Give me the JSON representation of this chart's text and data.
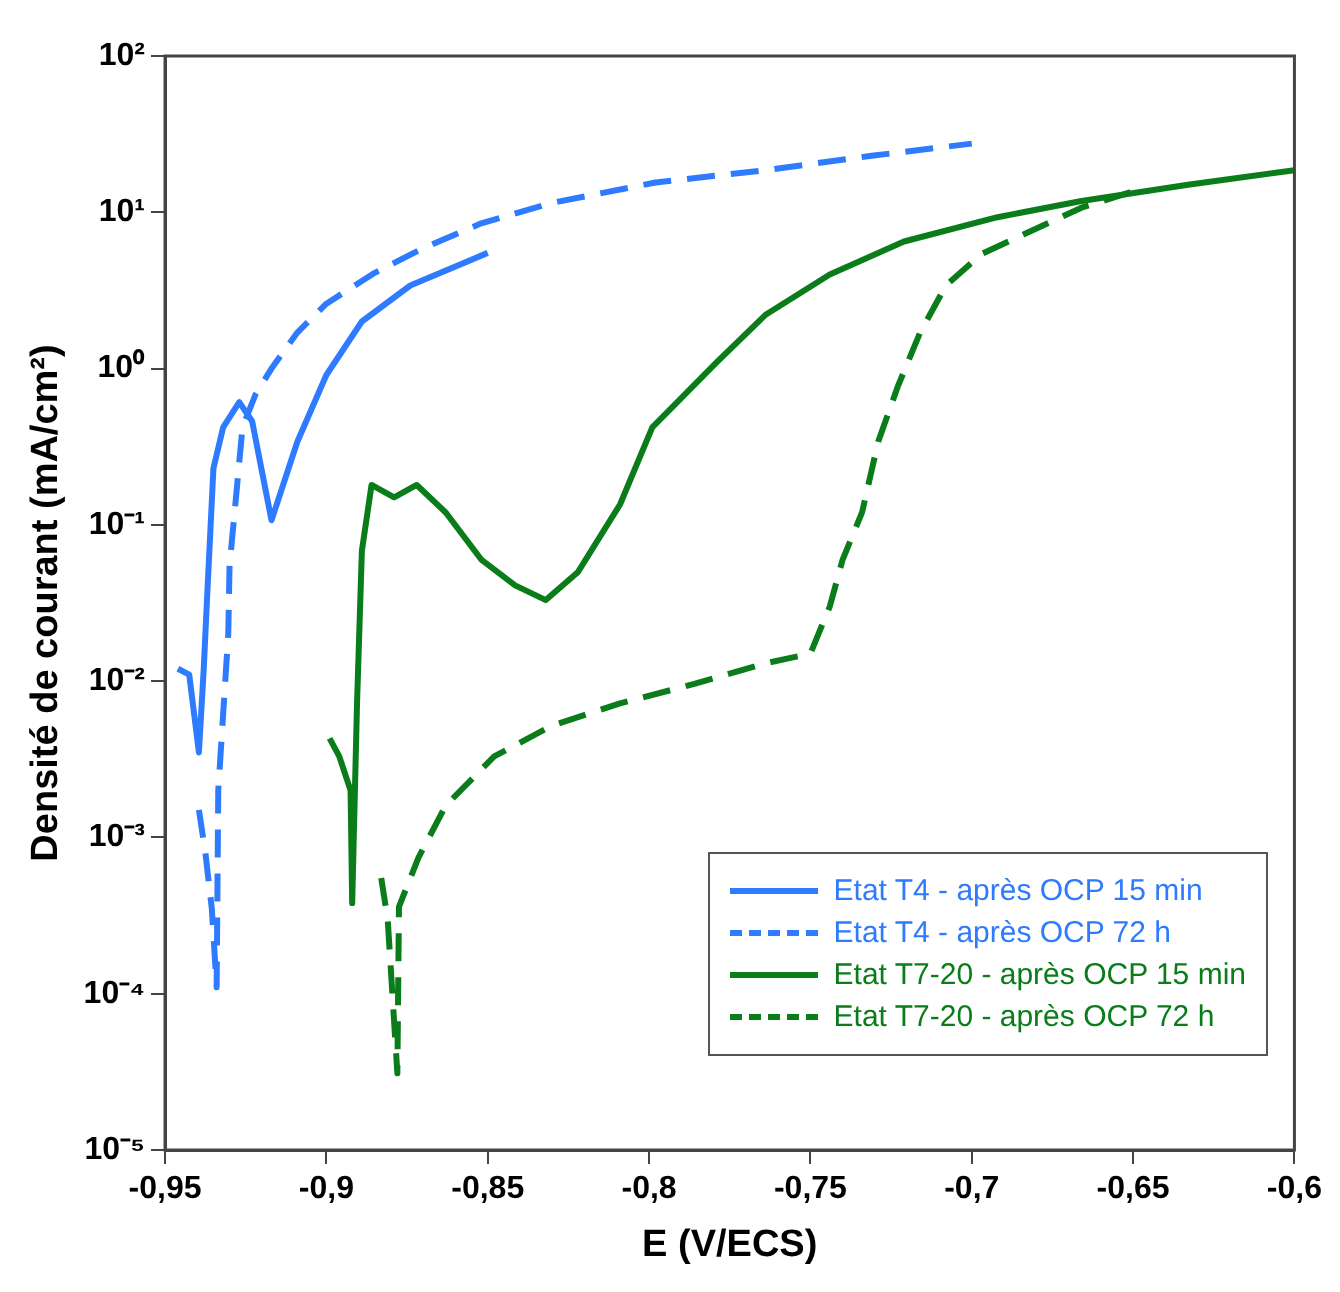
{
  "chart_data": {
    "type": "line",
    "xlabel": "E (V/ECS)",
    "ylabel": "Densité de courant (mA/cm²)",
    "log": "y",
    "grid": false,
    "legend": "bottom right",
    "marker": "none",
    "xlim": [
      -0.95,
      -0.6
    ],
    "xticks": [
      {
        "value": -0.95,
        "label": "-0,95"
      },
      {
        "value": -0.9,
        "label": "-0,9"
      },
      {
        "value": -0.85,
        "label": "-0,85"
      },
      {
        "value": -0.8,
        "label": "-0,8"
      },
      {
        "value": -0.75,
        "label": "-0,75"
      },
      {
        "value": -0.7,
        "label": "-0,7"
      },
      {
        "value": -0.65,
        "label": "-0,65"
      },
      {
        "value": -0.6,
        "label": "-0,6"
      }
    ],
    "ylim": [
      1e-05,
      100
    ],
    "yticks": [
      {
        "value": 1e-05,
        "label": "10⁻⁵"
      },
      {
        "value": 0.0001,
        "label": "10⁻⁴"
      },
      {
        "value": 0.001,
        "label": "10⁻³"
      },
      {
        "value": 0.01,
        "label": "10⁻²"
      },
      {
        "value": 0.1,
        "label": "10⁻¹"
      },
      {
        "value": 1,
        "label": "10⁰"
      },
      {
        "value": 10,
        "label": "10¹"
      },
      {
        "value": 100,
        "label": "10²"
      }
    ],
    "series": [
      {
        "name": "Etat T4 - après OCP 15 min",
        "color": "#2e7bff",
        "line_style": "solid",
        "x": [
          -0.946,
          -0.9425,
          -0.9395,
          -0.938,
          -0.937,
          -0.935,
          -0.932,
          -0.927,
          -0.923,
          -0.917,
          -0.909,
          -0.9,
          -0.889,
          -0.874,
          -0.85
        ],
        "values": [
          0.012,
          0.011,
          0.0035,
          0.012,
          0.033,
          0.23,
          0.42,
          0.61,
          0.46,
          0.107,
          0.34,
          0.91,
          2.0,
          3.4,
          5.5
        ]
      },
      {
        "name": "Etat T4 - après OCP 72 h",
        "color": "#2e7bff",
        "line_style": "dashed",
        "x": [
          -0.9395,
          -0.9375,
          -0.9355,
          -0.934,
          -0.9335,
          -0.9304,
          -0.93,
          -0.928,
          -0.926,
          -0.922,
          -0.917,
          -0.909,
          -0.9,
          -0.885,
          -0.87,
          -0.852,
          -0.83,
          -0.798,
          -0.764,
          -0.731,
          -0.7
        ],
        "values": [
          0.0015,
          0.0008,
          0.00035,
          0.00011,
          0.002,
          0.02,
          0.055,
          0.15,
          0.42,
          0.68,
          1.0,
          1.7,
          2.6,
          4.1,
          5.9,
          8.5,
          11.5,
          15.5,
          18.6,
          23,
          27.5
        ]
      },
      {
        "name": "Etat T7-20 - après OCP 15 min",
        "color": "#0a7d1a",
        "line_style": "solid",
        "x": [
          -0.899,
          -0.896,
          -0.8925,
          -0.892,
          -0.8905,
          -0.889,
          -0.886,
          -0.879,
          -0.872,
          -0.863,
          -0.852,
          -0.8415,
          -0.832,
          -0.822,
          -0.809,
          -0.799,
          -0.779,
          -0.764,
          -0.744,
          -0.721,
          -0.692,
          -0.666,
          -0.633,
          -0.6
        ],
        "values": [
          0.0043,
          0.0033,
          0.002,
          0.00038,
          0.0072,
          0.068,
          0.18,
          0.15,
          0.18,
          0.12,
          0.06,
          0.041,
          0.033,
          0.05,
          0.135,
          0.42,
          1.1,
          2.2,
          4.0,
          6.5,
          9.3,
          11.8,
          15,
          18.6
        ]
      },
      {
        "name": "Etat T7-20 - après OCP 72 h",
        "color": "#0a7d1a",
        "line_style": "dashed",
        "x": [
          -0.883,
          -0.881,
          -0.878,
          -0.8775,
          -0.8715,
          -0.863,
          -0.848,
          -0.83,
          -0.809,
          -0.786,
          -0.764,
          -0.75,
          -0.744,
          -0.74,
          -0.734,
          -0.729,
          -0.723,
          -0.716,
          -0.708,
          -0.697,
          -0.684,
          -0.666,
          -0.649
        ],
        "values": [
          0.00055,
          0.0003,
          3.1e-05,
          0.00036,
          0.00074,
          0.0016,
          0.0033,
          0.0052,
          0.0072,
          0.0096,
          0.013,
          0.015,
          0.03,
          0.06,
          0.12,
          0.34,
          0.76,
          1.7,
          3.4,
          5.4,
          7.2,
          10.7,
          13.8
        ]
      }
    ]
  }
}
